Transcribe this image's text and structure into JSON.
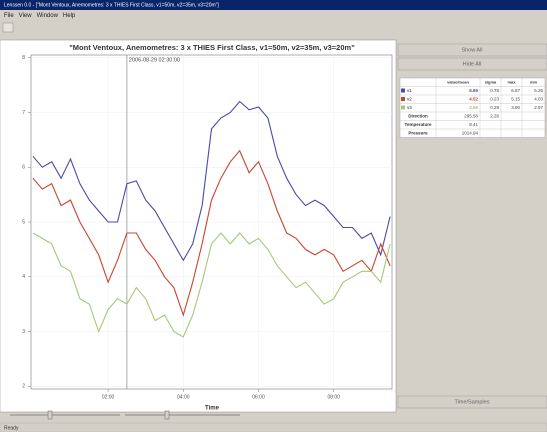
{
  "window": {
    "title": "Lenssen 0.0 - [\"Mont Ventoux, Anemometres: 3 x THIES First Class, v1=50m, v2=35m, v3=20m\"]"
  },
  "menu": [
    "File",
    "View",
    "Window",
    "Help"
  ],
  "chart_data": {
    "type": "line",
    "title": "\"Mont Ventoux, Anemometres: 3 x THIES First Class, v1=50m, v2=35m, v3=20m\"",
    "xlabel": "Time",
    "x": [
      0,
      0.25,
      0.5,
      0.75,
      1,
      1.25,
      1.5,
      1.75,
      2,
      2.25,
      2.5,
      2.75,
      3,
      3.25,
      3.5,
      3.75,
      4,
      4.25,
      4.5,
      4.75,
      5,
      5.25,
      5.5,
      5.75,
      6,
      6.25,
      6.5,
      6.75,
      7,
      7.25,
      7.5,
      7.75,
      8,
      8.25,
      8.5,
      8.75,
      9,
      9.25,
      9.5
    ],
    "series": [
      {
        "name": "v1",
        "color": "#4a4aa8",
        "values": [
          6.2,
          6.0,
          6.1,
          5.8,
          6.15,
          5.7,
          5.4,
          5.2,
          5.0,
          5.0,
          5.7,
          5.75,
          5.4,
          5.2,
          4.9,
          4.6,
          4.3,
          4.6,
          5.3,
          6.7,
          6.9,
          7.0,
          7.2,
          7.05,
          7.1,
          6.9,
          6.2,
          5.8,
          5.5,
          5.3,
          5.4,
          5.3,
          5.1,
          4.9,
          4.9,
          4.7,
          4.8,
          4.4,
          5.1
        ]
      },
      {
        "name": "v2",
        "color": "#c8442e",
        "values": [
          5.8,
          5.6,
          5.7,
          5.3,
          5.4,
          5.0,
          4.7,
          4.4,
          3.9,
          4.3,
          4.8,
          4.8,
          4.5,
          4.3,
          4.0,
          3.8,
          3.3,
          3.9,
          4.6,
          5.4,
          5.8,
          6.1,
          6.3,
          5.9,
          6.1,
          5.7,
          5.2,
          4.8,
          4.7,
          4.5,
          4.4,
          4.5,
          4.4,
          4.1,
          4.2,
          4.3,
          4.1,
          4.6,
          4.2
        ]
      },
      {
        "name": "v3",
        "color": "#a6c878",
        "values": [
          4.8,
          4.7,
          4.6,
          4.2,
          4.1,
          3.6,
          3.5,
          3.0,
          3.4,
          3.6,
          3.5,
          3.8,
          3.6,
          3.2,
          3.3,
          3.0,
          2.9,
          3.3,
          3.9,
          4.6,
          4.8,
          4.6,
          4.8,
          4.6,
          4.7,
          4.5,
          4.2,
          4.0,
          3.8,
          3.9,
          3.7,
          3.5,
          3.6,
          3.9,
          4.0,
          4.1,
          4.1,
          3.9,
          4.6
        ]
      }
    ],
    "xlim": [
      -0.05,
      9.55
    ],
    "xticks": [
      {
        "value": 2,
        "label": "02:00"
      },
      {
        "value": 4,
        "label": "04:00"
      },
      {
        "value": 6,
        "label": "06:00"
      },
      {
        "value": 8,
        "label": "08:00"
      }
    ],
    "ylim": [
      1.95,
      8.05
    ],
    "yticks": [
      2,
      3,
      4,
      5,
      6,
      7,
      8
    ],
    "grid": true,
    "cursor": {
      "x": 2.5,
      "label": "2006-08-29 02:30:00"
    }
  },
  "panel": {
    "show_all": "Show All",
    "hide_all": "Hide All",
    "table": {
      "headers": [
        "value/mean",
        "sigma",
        "max",
        "min"
      ],
      "rows": [
        {
          "cells": [
            "5.65",
            "0.78",
            "6.87",
            "5.26"
          ]
        },
        {
          "cells": [
            "4.52",
            "0.23",
            "5.15",
            "4.03"
          ]
        },
        {
          "cells": [
            "3.66",
            "0.29",
            "3.90",
            "2.97"
          ]
        },
        {
          "label": "Direction",
          "cells": [
            "295.56",
            "2.26"
          ]
        },
        {
          "label": "Temperature",
          "cells": [
            "8.41"
          ]
        },
        {
          "label": "Pressure",
          "cells": [
            "1014.94"
          ]
        }
      ]
    },
    "mode_button": "Time/Samples"
  },
  "status": "Ready"
}
